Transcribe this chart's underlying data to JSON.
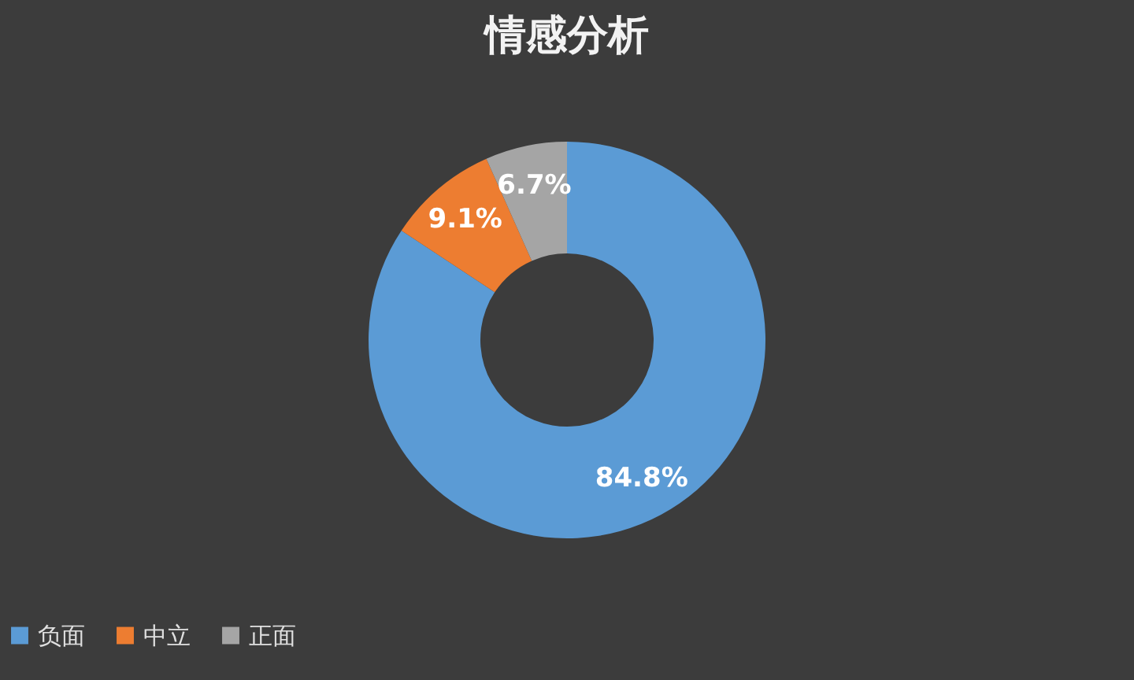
{
  "chart_data": {
    "type": "donut",
    "title": "情感分析",
    "categories": [
      "负面",
      "中立",
      "正面"
    ],
    "values": [
      84.8,
      9.1,
      6.7
    ],
    "colors": [
      "#5b9bd5",
      "#ed7d31",
      "#a5a5a5"
    ],
    "value_labels": [
      "84.8%",
      "9.1%",
      "6.7%"
    ],
    "legend": "bottom"
  }
}
